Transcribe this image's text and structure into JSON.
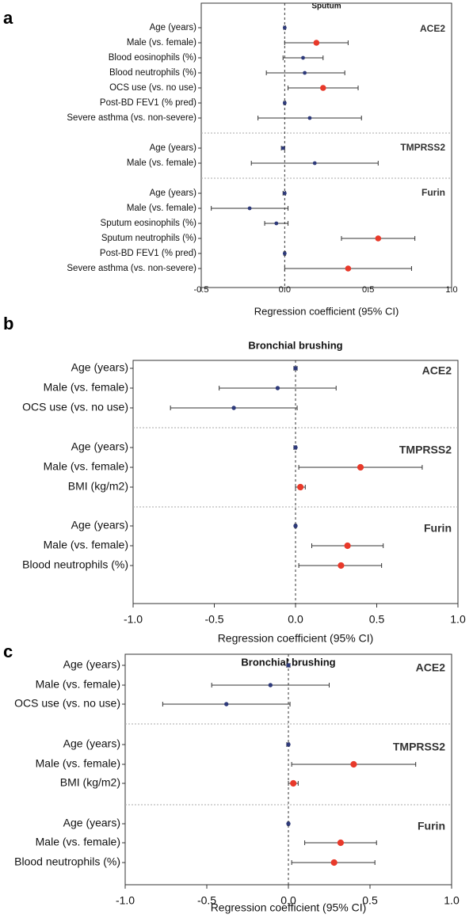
{
  "colors": {
    "significant": "#e8392a",
    "nonsignificant": "#2e3a7a",
    "whisker": "#333333",
    "frame": "#333333",
    "divider": "#aaaaaa"
  },
  "chart_data": [
    {
      "panel_label": "a",
      "type": "scatter",
      "subtype": "forest",
      "title": "Sputum",
      "xlabel": "Regression coefficient (95% CI)",
      "xlim": [
        -0.5,
        1.0
      ],
      "xticks": [
        "-0.5",
        "0.0",
        "0.5",
        "1.0"
      ],
      "xtick_values": [
        -0.5,
        0.0,
        0.5,
        1.0
      ],
      "reference_line": 0,
      "groups": [
        {
          "name": "ACE2",
          "rows": [
            {
              "label": "Age (years)",
              "est": 0.0,
              "lo": -0.005,
              "hi": 0.005,
              "significant": false
            },
            {
              "label": "Male (vs. female)",
              "est": 0.19,
              "lo": 0.0,
              "hi": 0.38,
              "significant": true
            },
            {
              "label": "Blood eosinophils (%)",
              "est": 0.11,
              "lo": -0.01,
              "hi": 0.23,
              "significant": false
            },
            {
              "label": "Blood neutrophils (%)",
              "est": 0.12,
              "lo": -0.11,
              "hi": 0.36,
              "significant": false
            },
            {
              "label": "OCS use (vs. no use)",
              "est": 0.23,
              "lo": 0.02,
              "hi": 0.44,
              "significant": true
            },
            {
              "label": "Post-BD FEV1 (% pred)",
              "est": 0.0,
              "lo": -0.005,
              "hi": 0.005,
              "significant": false
            },
            {
              "label": "Severe asthma (vs. non-severe)",
              "est": 0.15,
              "lo": -0.16,
              "hi": 0.46,
              "significant": false
            }
          ]
        },
        {
          "name": "TMPRSS2",
          "rows": [
            {
              "label": "Age (years)",
              "est": -0.01,
              "lo": -0.02,
              "hi": 0.0,
              "significant": false
            },
            {
              "label": "Male (vs. female)",
              "est": 0.18,
              "lo": -0.2,
              "hi": 0.56,
              "significant": false
            }
          ]
        },
        {
          "name": "Furin",
          "rows": [
            {
              "label": "Age (years)",
              "est": 0.0,
              "lo": -0.01,
              "hi": 0.005,
              "significant": false
            },
            {
              "label": "Male (vs. female)",
              "est": -0.21,
              "lo": -0.44,
              "hi": 0.02,
              "significant": false
            },
            {
              "label": "Sputum eosinophils (%)",
              "est": -0.05,
              "lo": -0.12,
              "hi": 0.02,
              "significant": false
            },
            {
              "label": "Sputum neutrophils (%)",
              "est": 0.56,
              "lo": 0.34,
              "hi": 0.78,
              "significant": true
            },
            {
              "label": "Post-BD FEV1 (% pred)",
              "est": 0.0,
              "lo": -0.005,
              "hi": 0.005,
              "significant": false
            },
            {
              "label": "Severe asthma (vs. non-severe)",
              "est": 0.38,
              "lo": 0.0,
              "hi": 0.76,
              "significant": true
            }
          ]
        }
      ]
    },
    {
      "panel_label": "b",
      "type": "scatter",
      "subtype": "forest",
      "title": "Bronchial brushing",
      "xlabel": "Regression coefficient (95% CI)",
      "xlim": [
        -1.0,
        1.0
      ],
      "xticks": [
        "-1.0",
        "-0.5",
        "0.0",
        "0.5",
        "1.0"
      ],
      "xtick_values": [
        -1.0,
        -0.5,
        0.0,
        0.5,
        1.0
      ],
      "reference_line": 0,
      "groups": [
        {
          "name": "ACE2",
          "rows": [
            {
              "label": "Age (years)",
              "est": 0.0,
              "lo": -0.01,
              "hi": 0.01,
              "significant": false
            },
            {
              "label": "Male (vs. female)",
              "est": -0.11,
              "lo": -0.47,
              "hi": 0.25,
              "significant": false
            },
            {
              "label": "OCS use (vs. no use)",
              "est": -0.38,
              "lo": -0.77,
              "hi": 0.01,
              "significant": false
            }
          ]
        },
        {
          "name": "TMPRSS2",
          "rows": [
            {
              "label": "Age (years)",
              "est": 0.0,
              "lo": -0.01,
              "hi": 0.005,
              "significant": false
            },
            {
              "label": "Male (vs. female)",
              "est": 0.4,
              "lo": 0.02,
              "hi": 0.78,
              "significant": true
            },
            {
              "label": "BMI (kg/m2)",
              "est": 0.03,
              "lo": 0.0,
              "hi": 0.06,
              "significant": true
            }
          ]
        },
        {
          "name": "Furin",
          "rows": [
            {
              "label": "Age (years)",
              "est": 0.0,
              "lo": -0.005,
              "hi": 0.005,
              "significant": false
            },
            {
              "label": "Male (vs. female)",
              "est": 0.32,
              "lo": 0.1,
              "hi": 0.54,
              "significant": true
            },
            {
              "label": "Blood neutrophils (%)",
              "est": 0.28,
              "lo": 0.02,
              "hi": 0.53,
              "significant": true
            }
          ]
        }
      ]
    },
    {
      "panel_label": "c",
      "type": "scatter",
      "subtype": "forest",
      "title": "Bronchial brushing",
      "xlabel": "Regression coefficient (95% CI)",
      "xlim": [
        -1.0,
        1.0
      ],
      "xticks": [
        "-1.0",
        "-0.5",
        "0.0",
        "0.5",
        "1.0"
      ],
      "xtick_values": [
        -1.0,
        -0.5,
        0.0,
        0.5,
        1.0
      ],
      "reference_line": 0,
      "groups": [
        {
          "name": "ACE2",
          "rows": [
            {
              "label": "Age (years)",
              "est": 0.0,
              "lo": -0.01,
              "hi": 0.01,
              "significant": false
            },
            {
              "label": "Male (vs. female)",
              "est": -0.11,
              "lo": -0.47,
              "hi": 0.25,
              "significant": false
            },
            {
              "label": "OCS use (vs. no use)",
              "est": -0.38,
              "lo": -0.77,
              "hi": 0.01,
              "significant": false
            }
          ]
        },
        {
          "name": "TMPRSS2",
          "rows": [
            {
              "label": "Age (years)",
              "est": 0.0,
              "lo": -0.01,
              "hi": 0.005,
              "significant": false
            },
            {
              "label": "Male (vs. female)",
              "est": 0.4,
              "lo": 0.02,
              "hi": 0.78,
              "significant": true
            },
            {
              "label": "BMI (kg/m2)",
              "est": 0.03,
              "lo": 0.0,
              "hi": 0.06,
              "significant": true
            }
          ]
        },
        {
          "name": "Furin",
          "rows": [
            {
              "label": "Age (years)",
              "est": 0.0,
              "lo": -0.005,
              "hi": 0.005,
              "significant": false
            },
            {
              "label": "Male (vs. female)",
              "est": 0.32,
              "lo": 0.1,
              "hi": 0.54,
              "significant": true
            },
            {
              "label": "Blood neutrophils (%)",
              "est": 0.28,
              "lo": 0.02,
              "hi": 0.53,
              "significant": true
            }
          ]
        }
      ]
    }
  ]
}
